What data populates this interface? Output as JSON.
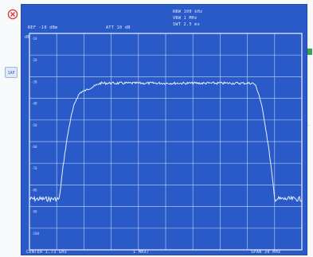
{
  "header": {
    "rbw": "RBW 100 kHz",
    "vbw": "VBW 1 MHz",
    "swt": "SWT 2.5 ms",
    "ref": "REF -10 dBm",
    "att": "ATT 10 dB",
    "unit": "dBm"
  },
  "y_tick_labels": [
    "-10",
    "-20",
    "-30",
    "-40",
    "-50",
    "-60",
    "-70",
    "-80",
    "-90",
    "-100"
  ],
  "footer": {
    "center": "CENTER 1.73 GHz",
    "span": "SPAN 30 MHz",
    "marker": "1 MHz/"
  },
  "side_softkey_label": "1AP",
  "trace_color": "#e6f3ff",
  "grid_color": "#d8e6ff",
  "screen_color": "#2a59c8"
}
